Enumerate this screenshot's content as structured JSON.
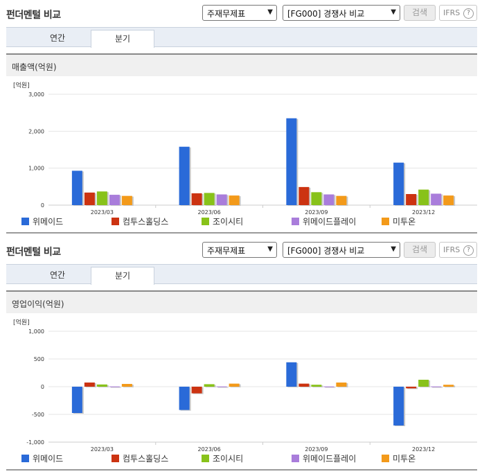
{
  "panels": [
    {
      "title": "펀더멘털 비교",
      "select1": "주재무제표",
      "select2": "[FG000] 경쟁사 비교",
      "search_label": "검색",
      "ifrs_label": "IFRS",
      "help_icon": "?",
      "tabs": [
        {
          "label": "연간",
          "active": false
        },
        {
          "label": "분기",
          "active": true
        }
      ],
      "chart_title": "매출액(억원)"
    },
    {
      "title": "펀더멘털 비교",
      "select1": "주재무제표",
      "select2": "[FG000] 경쟁사 비교",
      "search_label": "검색",
      "ifrs_label": "IFRS",
      "help_icon": "?",
      "tabs": [
        {
          "label": "연간",
          "active": false
        },
        {
          "label": "분기",
          "active": true
        }
      ],
      "chart_title": "영업이익(억원)"
    }
  ],
  "chart_data": [
    {
      "type": "bar",
      "unit_label": "[억원]",
      "categories": [
        "2023/03",
        "2023/06",
        "2023/09",
        "2023/12"
      ],
      "ylim": [
        0,
        3000
      ],
      "yticks": [
        0,
        1000,
        2000,
        3000
      ],
      "ytick_labels": [
        "0",
        "1,000",
        "2,000",
        "3,000"
      ],
      "grid": true,
      "legend_position": "bottom",
      "series": [
        {
          "name": "위메이드",
          "color": "#2a6ad8",
          "values": [
            930,
            1580,
            2350,
            1150
          ]
        },
        {
          "name": "컴투스홀딩스",
          "color": "#cc3311",
          "values": [
            340,
            320,
            490,
            300
          ]
        },
        {
          "name": "조이시티",
          "color": "#88c21a",
          "values": [
            370,
            330,
            350,
            420
          ]
        },
        {
          "name": "위메이드플레이",
          "color": "#a97ddb",
          "values": [
            280,
            290,
            290,
            310
          ]
        },
        {
          "name": "미투온",
          "color": "#f39a1a",
          "values": [
            250,
            260,
            250,
            260
          ]
        }
      ]
    },
    {
      "type": "bar",
      "unit_label": "[억원]",
      "categories": [
        "2023/03",
        "2023/06",
        "2023/09",
        "2023/12"
      ],
      "ylim": [
        -1000,
        1000
      ],
      "yticks": [
        -1000,
        -500,
        0,
        500,
        1000
      ],
      "ytick_labels": [
        "-1,000",
        "-500",
        "0",
        "500",
        "1,000"
      ],
      "grid": true,
      "legend_position": "bottom",
      "series": [
        {
          "name": "위메이드",
          "color": "#2a6ad8",
          "values": [
            -475,
            -420,
            440,
            -700
          ]
        },
        {
          "name": "컴투스홀딩스",
          "color": "#cc3311",
          "values": [
            75,
            -120,
            55,
            -30
          ]
        },
        {
          "name": "조이시티",
          "color": "#88c21a",
          "values": [
            40,
            45,
            35,
            125
          ]
        },
        {
          "name": "위메이드플레이",
          "color": "#a97ddb",
          "values": [
            5,
            5,
            5,
            5
          ]
        },
        {
          "name": "미투온",
          "color": "#f39a1a",
          "values": [
            50,
            55,
            75,
            35
          ]
        }
      ]
    }
  ]
}
